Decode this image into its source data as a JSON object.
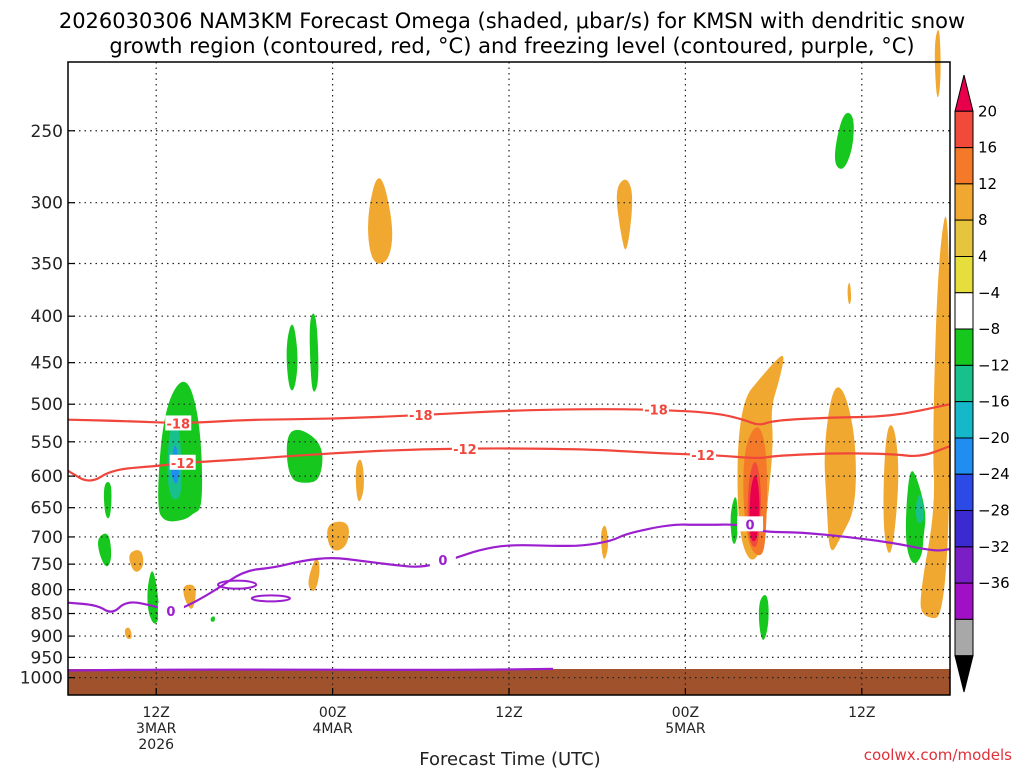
{
  "chart_data": {
    "type": "time-height",
    "title_line1": "2026030306 NAM3KM Forecast Omega (shaded, μbar/s) for KMSN with dendritic snow",
    "title_line2": "growth region (contoured, red, °C) and freezing level (contoured, purple, °C)",
    "xlabel": "Forecast Time (UTC)",
    "credit": "coolwx.com/models",
    "x_range_hours": [
      0,
      60
    ],
    "x_ticks": [
      {
        "hour": 6,
        "l1": "12Z",
        "l2": "3MAR",
        "l3": "2026"
      },
      {
        "hour": 18,
        "l1": "00Z",
        "l2": "4MAR",
        "l3": ""
      },
      {
        "hour": 30,
        "l1": "12Z",
        "l2": "",
        "l3": ""
      },
      {
        "hour": 42,
        "l1": "00Z",
        "l2": "5MAR",
        "l3": ""
      },
      {
        "hour": 54,
        "l1": "12Z",
        "l2": "",
        "l3": ""
      }
    ],
    "y_levels_hpa": [
      250,
      300,
      350,
      400,
      450,
      500,
      550,
      600,
      650,
      700,
      750,
      800,
      850,
      900,
      950,
      1000
    ],
    "colorbar": {
      "labels": [
        "20",
        "16",
        "12",
        "8",
        "4",
        "−4",
        "−8",
        "−12",
        "−16",
        "−20",
        "−24",
        "−28",
        "−32",
        "−36"
      ],
      "colors": [
        "#e8004c",
        "#f24a3a",
        "#f47a2a",
        "#f0a830",
        "#e6c43e",
        "#e6de3c",
        "#ffffff",
        "#16c81e",
        "#18c08c",
        "#14b8c8",
        "#1f8ef0",
        "#2c4ae6",
        "#3a2ad0",
        "#7a1ec6",
        "#a010c4",
        "#a8a8a8",
        "#000000"
      ]
    },
    "contours": {
      "dgz_minus18": {
        "label": "-18",
        "color": "#f0463c",
        "points": [
          [
            0,
            520
          ],
          [
            4,
            522
          ],
          [
            8,
            525
          ],
          [
            12,
            520
          ],
          [
            18,
            519
          ],
          [
            24,
            514
          ],
          [
            30,
            508
          ],
          [
            36,
            506
          ],
          [
            40,
            507
          ],
          [
            44,
            511
          ],
          [
            46,
            520
          ],
          [
            47,
            528
          ],
          [
            48,
            521
          ],
          [
            52,
            517
          ],
          [
            56,
            516
          ],
          [
            60,
            500
          ]
        ]
      },
      "dgz_minus12": {
        "label": "-12",
        "color": "#f0463c",
        "points": [
          [
            0,
            592
          ],
          [
            1.5,
            612
          ],
          [
            3,
            590
          ],
          [
            6,
            585
          ],
          [
            8,
            580
          ],
          [
            12,
            575
          ],
          [
            18,
            566
          ],
          [
            24,
            560
          ],
          [
            30,
            559
          ],
          [
            36,
            561
          ],
          [
            40,
            566
          ],
          [
            44,
            569
          ],
          [
            47,
            574
          ],
          [
            48,
            570
          ],
          [
            52,
            566
          ],
          [
            56,
            567
          ],
          [
            58,
            572
          ],
          [
            60,
            556
          ]
        ]
      },
      "freezing_level": {
        "label": "0",
        "color": "#9b1fcf",
        "points": [
          [
            0,
            827
          ],
          [
            2,
            832
          ],
          [
            3,
            852
          ],
          [
            4,
            822
          ],
          [
            6,
            835
          ],
          [
            7,
            845
          ],
          [
            8,
            836
          ],
          [
            10,
            802
          ],
          [
            12,
            762
          ],
          [
            14,
            757
          ],
          [
            16,
            743
          ],
          [
            18,
            737
          ],
          [
            20,
            744
          ],
          [
            22,
            751
          ],
          [
            24,
            757
          ],
          [
            26,
            742
          ],
          [
            28,
            723
          ],
          [
            30,
            714
          ],
          [
            33,
            716
          ],
          [
            35,
            716
          ],
          [
            37,
            707
          ],
          [
            38,
            694
          ],
          [
            41,
            678
          ],
          [
            43,
            679
          ],
          [
            46,
            678
          ],
          [
            47,
            691
          ],
          [
            50,
            692
          ],
          [
            53,
            700
          ],
          [
            56,
            710
          ],
          [
            59,
            726
          ],
          [
            60,
            722
          ]
        ]
      },
      "freezing_level_surface": {
        "label": "",
        "color": "#9b1fcf",
        "points": [
          [
            0,
            982
          ],
          [
            8,
            979
          ],
          [
            26,
            981
          ],
          [
            33,
            978
          ]
        ]
      }
    },
    "omega_regions": [
      {
        "value": 8,
        "ring": [
          [
            20.3,
            310
          ],
          [
            21.2,
            272
          ],
          [
            22.2,
            320
          ],
          [
            21.8,
            350
          ],
          [
            20.6,
            350
          ]
        ]
      },
      {
        "value": 8,
        "ring": [
          [
            37.2,
            290
          ],
          [
            38.0,
            280
          ],
          [
            38.5,
            295
          ],
          [
            38.0,
            345
          ],
          [
            37.6,
            325
          ]
        ]
      },
      {
        "value": 8,
        "ring": [
          [
            55.6,
            535
          ],
          [
            56.2,
            522
          ],
          [
            56.6,
            600
          ],
          [
            56.0,
            752
          ],
          [
            55.4,
            690
          ]
        ]
      },
      {
        "value": 8,
        "ring": [
          [
            46.0,
            492
          ],
          [
            47.0,
            470
          ],
          [
            48.0,
            450
          ],
          [
            48.8,
            438
          ],
          [
            48.4,
            470
          ],
          [
            47.8,
            505
          ],
          [
            48.0,
            550
          ],
          [
            47.6,
            640
          ],
          [
            47.3,
            720
          ],
          [
            46.4,
            752
          ],
          [
            45.6,
            690
          ],
          [
            45.5,
            560
          ]
        ]
      },
      {
        "value": 8,
        "ring": [
          [
            51.4,
            560
          ],
          [
            52.0,
            478
          ],
          [
            52.8,
            480
          ],
          [
            53.6,
            545
          ],
          [
            53.6,
            650
          ],
          [
            52.6,
            700
          ],
          [
            51.8,
            738
          ],
          [
            51.6,
            640
          ]
        ]
      },
      {
        "value": 8,
        "ring": [
          [
            59.2,
            340
          ],
          [
            60.0,
            290
          ],
          [
            60.0,
            860
          ],
          [
            58.0,
            860
          ],
          [
            58.0,
            800
          ],
          [
            59.0,
            650
          ],
          [
            58.8,
            550
          ]
        ]
      },
      {
        "value": 8,
        "ring": [
          [
            58.9,
            200
          ],
          [
            59.3,
            190
          ],
          [
            59.4,
            220
          ],
          [
            59.1,
            235
          ]
        ]
      },
      {
        "value": 8,
        "ring": [
          [
            16.2,
            790
          ],
          [
            16.9,
            730
          ],
          [
            17.2,
            760
          ],
          [
            16.8,
            810
          ]
        ]
      },
      {
        "value": 8,
        "ring": [
          [
            17.5,
            675
          ],
          [
            19.2,
            672
          ],
          [
            19.0,
            720
          ],
          [
            17.8,
            728
          ]
        ]
      },
      {
        "value": 8,
        "ring": [
          [
            19.5,
            585
          ],
          [
            20.0,
            570
          ],
          [
            20.2,
            620
          ],
          [
            19.7,
            650
          ]
        ]
      },
      {
        "value": 8,
        "ring": [
          [
            7.8,
            790
          ],
          [
            8.8,
            790
          ],
          [
            8.5,
            850
          ],
          [
            7.9,
            820
          ]
        ]
      },
      {
        "value": 8,
        "ring": [
          [
            4.0,
            730
          ],
          [
            5.0,
            720
          ],
          [
            5.2,
            755
          ],
          [
            4.5,
            770
          ]
        ]
      },
      {
        "value": 8,
        "ring": [
          [
            3.8,
            885
          ],
          [
            4.2,
            878
          ],
          [
            4.4,
            905
          ],
          [
            4.0,
            908
          ]
        ]
      },
      {
        "value": 8,
        "ring": [
          [
            36.2,
            690
          ],
          [
            36.6,
            675
          ],
          [
            36.8,
            720
          ],
          [
            36.4,
            750
          ]
        ]
      },
      {
        "value": 8,
        "ring": [
          [
            53.0,
            372
          ],
          [
            53.2,
            365
          ],
          [
            53.3,
            385
          ],
          [
            53.1,
            390
          ]
        ]
      },
      {
        "value": 8,
        "ring": [
          [
            59.0,
            540
          ],
          [
            59.3,
            520
          ],
          [
            59.4,
            565
          ],
          [
            59.1,
            565
          ]
        ]
      },
      {
        "value": 12,
        "ring": [
          [
            46.0,
            555
          ],
          [
            47.0,
            520
          ],
          [
            47.6,
            570
          ],
          [
            47.5,
            700
          ],
          [
            47.2,
            740
          ],
          [
            46.3,
            720
          ],
          [
            45.9,
            640
          ]
        ]
      },
      {
        "value": 16,
        "ring": [
          [
            46.3,
            600
          ],
          [
            46.8,
            570
          ],
          [
            47.2,
            620
          ],
          [
            47.0,
            715
          ],
          [
            46.5,
            720
          ],
          [
            46.2,
            680
          ]
        ]
      },
      {
        "value": 20,
        "ring": [
          [
            46.4,
            620
          ],
          [
            46.8,
            590
          ],
          [
            47.1,
            640
          ],
          [
            46.9,
            705
          ],
          [
            46.5,
            710
          ],
          [
            46.35,
            680
          ]
        ]
      },
      {
        "value": -4,
        "ring": [
          [
            6.0,
            650
          ],
          [
            6.5,
            505
          ],
          [
            8.0,
            460
          ],
          [
            9.0,
            520
          ],
          [
            9.2,
            650
          ],
          [
            8.5,
            660
          ],
          [
            8.0,
            670
          ],
          [
            6.6,
            675
          ]
        ]
      },
      {
        "value": -8,
        "ring": [
          [
            6.7,
            585
          ],
          [
            7.0,
            520
          ],
          [
            7.6,
            525
          ],
          [
            7.8,
            620
          ],
          [
            7.4,
            640
          ],
          [
            6.9,
            630
          ]
        ]
      },
      {
        "value": -12,
        "ring": [
          [
            7.0,
            585
          ],
          [
            7.3,
            545
          ],
          [
            7.6,
            590
          ],
          [
            7.4,
            615
          ],
          [
            7.1,
            605
          ]
        ]
      },
      {
        "value": -4,
        "ring": [
          [
            14.8,
            430
          ],
          [
            15.3,
            400
          ],
          [
            15.7,
            445
          ],
          [
            15.4,
            485
          ],
          [
            15.0,
            480
          ]
        ]
      },
      {
        "value": -4,
        "ring": [
          [
            16.4,
            400
          ],
          [
            16.9,
            395
          ],
          [
            17.1,
            470
          ],
          [
            16.7,
            490
          ],
          [
            16.5,
            465
          ]
        ]
      },
      {
        "value": -4,
        "ring": [
          [
            14.8,
            540
          ],
          [
            15.8,
            530
          ],
          [
            17.4,
            555
          ],
          [
            17.2,
            605
          ],
          [
            16.2,
            612
          ],
          [
            15.0,
            605
          ]
        ]
      },
      {
        "value": -4,
        "ring": [
          [
            2.4,
            610
          ],
          [
            3.0,
            608
          ],
          [
            2.9,
            670
          ],
          [
            2.5,
            665
          ]
        ]
      },
      {
        "value": -4,
        "ring": [
          [
            2.0,
            700
          ],
          [
            2.8,
            690
          ],
          [
            3.0,
            740
          ],
          [
            2.6,
            760
          ],
          [
            2.1,
            730
          ]
        ]
      },
      {
        "value": -4,
        "ring": [
          [
            5.4,
            790
          ],
          [
            5.8,
            750
          ],
          [
            6.3,
            850
          ],
          [
            5.9,
            880
          ],
          [
            5.4,
            845
          ]
        ]
      },
      {
        "value": -4,
        "ring": [
          [
            9.7,
            858
          ],
          [
            10.0,
            855
          ],
          [
            10.0,
            868
          ],
          [
            9.7,
            868
          ]
        ]
      },
      {
        "value": -4,
        "ring": [
          [
            45.0,
            660
          ],
          [
            45.5,
            620
          ],
          [
            45.6,
            700
          ],
          [
            45.2,
            720
          ]
        ]
      },
      {
        "value": -4,
        "ring": [
          [
            47.0,
            820
          ],
          [
            47.6,
            805
          ],
          [
            47.7,
            870
          ],
          [
            47.3,
            920
          ],
          [
            47.0,
            880
          ]
        ]
      },
      {
        "value": -4,
        "ring": [
          [
            52.0,
            270
          ],
          [
            52.7,
            238
          ],
          [
            53.5,
            240
          ],
          [
            53.4,
            262
          ],
          [
            52.7,
            278
          ]
        ]
      },
      {
        "value": -4,
        "ring": [
          [
            57.0,
            650
          ],
          [
            57.3,
            585
          ],
          [
            57.8,
            605
          ],
          [
            58.4,
            660
          ],
          [
            58.2,
            700
          ],
          [
            58.1,
            735
          ],
          [
            57.5,
            755
          ],
          [
            57.0,
            720
          ]
        ]
      },
      {
        "value": -8,
        "ring": [
          [
            57.6,
            650
          ],
          [
            58.0,
            620
          ],
          [
            58.3,
            670
          ],
          [
            57.8,
            680
          ]
        ]
      }
    ]
  }
}
